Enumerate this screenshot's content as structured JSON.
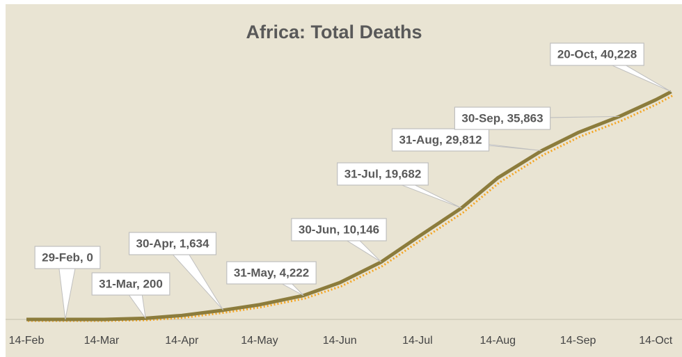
{
  "chart_data": {
    "type": "line",
    "title": "Africa: Total Deaths",
    "x": [
      45,
      60,
      75,
      91,
      105,
      121,
      135,
      152,
      166,
      182,
      196,
      213,
      227,
      244,
      258,
      274,
      288,
      294
    ],
    "series": [
      {
        "color": "#8c7c3c",
        "values": [
          0,
          0,
          0,
          200,
          700,
          1634,
          2600,
          4222,
          6500,
          10146,
          14500,
          19682,
          25000,
          29812,
          33000,
          35863,
          38800,
          40228
        ]
      },
      {
        "color": "#f5a623",
        "values": [
          0,
          0,
          0,
          120,
          550,
          1450,
          2400,
          3950,
          6100,
          9700,
          14000,
          19100,
          24400,
          29300,
          32500,
          35300,
          38300,
          39800
        ]
      }
    ],
    "xlim": [
      45,
      296
    ],
    "ylim": [
      0,
      45000
    ],
    "xticks": [
      {
        "value": 45,
        "label": "14-Feb"
      },
      {
        "value": 74,
        "label": "14-Mar"
      },
      {
        "value": 105,
        "label": "14-Apr"
      },
      {
        "value": 135,
        "label": "14-May"
      },
      {
        "value": 166,
        "label": "14-Jun"
      },
      {
        "value": 196,
        "label": "14-Jul"
      },
      {
        "value": 227,
        "label": "14-Aug"
      },
      {
        "value": 258,
        "label": "14-Sep"
      },
      {
        "value": 288,
        "label": "14-Oct"
      }
    ],
    "annotations": [
      {
        "x": 60,
        "y": 0,
        "label": "29-Feb, 0"
      },
      {
        "x": 91,
        "y": 200,
        "label": "31-Mar, 200"
      },
      {
        "x": 121,
        "y": 1634,
        "label": "30-Apr, 1,634"
      },
      {
        "x": 152,
        "y": 4222,
        "label": "31-May, 4,222"
      },
      {
        "x": 182,
        "y": 10146,
        "label": "30-Jun, 10,146"
      },
      {
        "x": 213,
        "y": 19682,
        "label": "31-Jul, 19,682"
      },
      {
        "x": 244,
        "y": 29812,
        "label": "31-Aug, 29,812"
      },
      {
        "x": 274,
        "y": 35863,
        "label": "30-Sep, 35,863"
      },
      {
        "x": 294,
        "y": 40228,
        "label": "20-Oct, 40,228"
      }
    ]
  }
}
